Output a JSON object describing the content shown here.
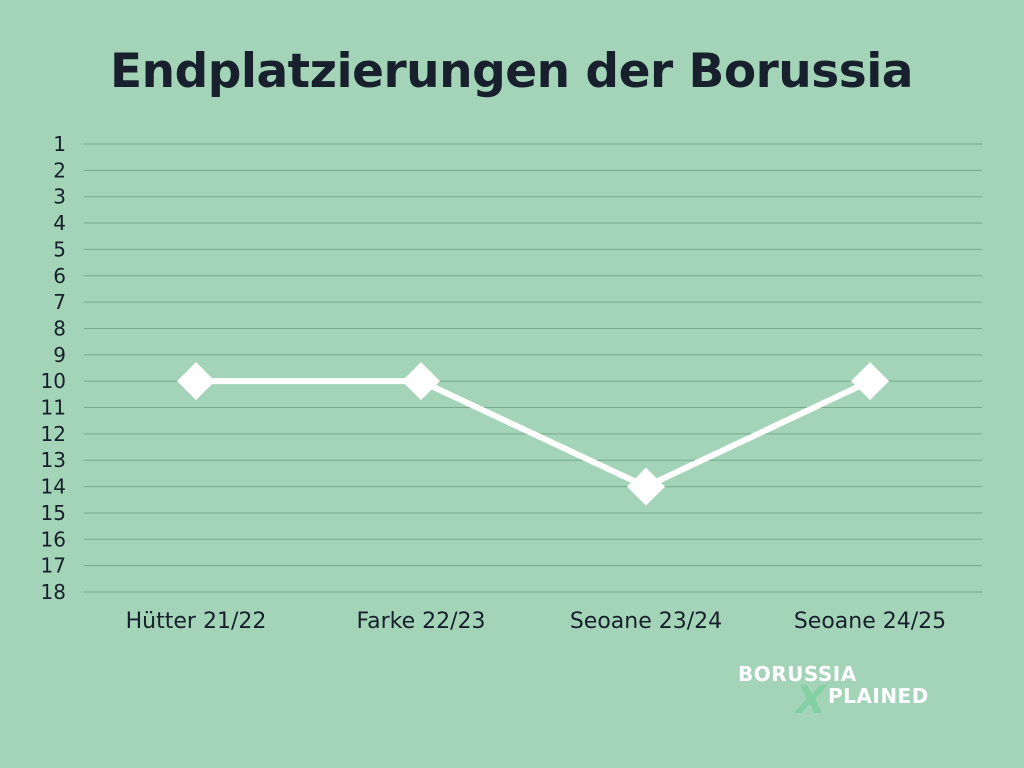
{
  "chart_data": {
    "type": "line",
    "title": "Endplatzierungen der Borussia",
    "categories": [
      "Hütter 21/22",
      "Farke 22/23",
      "Seoane 23/24",
      "Seoane 24/25"
    ],
    "series": [
      {
        "values": [
          10,
          10,
          14,
          10
        ]
      }
    ],
    "y_ticks": [
      "1",
      "2",
      "3",
      "4",
      "5",
      "6",
      "7",
      "8",
      "9",
      "10",
      "11",
      "12",
      "13",
      "14",
      "15",
      "16",
      "17",
      "18"
    ],
    "ylim": [
      1,
      18
    ],
    "y_inverted": true,
    "grid": true,
    "colors": {
      "background": "#a3d4b7",
      "gridline": "#77a98c",
      "series": "#ffffff",
      "text": "#17202c"
    }
  },
  "logo": {
    "line1": "BORUSSIA",
    "x": "X",
    "line2": "PLAINED"
  }
}
